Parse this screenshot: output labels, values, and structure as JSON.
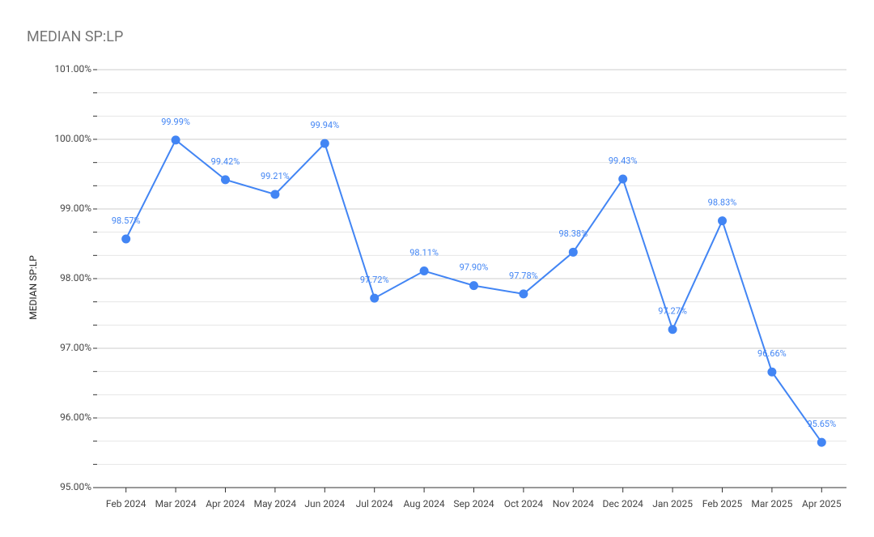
{
  "chart_data": {
    "type": "line",
    "title": "MEDIAN SP:LP",
    "y_label": "MEDIAN SP:LP",
    "categories": [
      "Feb 2024",
      "Mar 2024",
      "Apr 2024",
      "May 2024",
      "Jun 2024",
      "Jul 2024",
      "Aug 2024",
      "Sep 2024",
      "Oct 2024",
      "Nov 2024",
      "Dec 2024",
      "Jan 2025",
      "Feb 2025",
      "Mar 2025",
      "Apr 2025"
    ],
    "series": [
      {
        "name": "MEDIAN SP:LP",
        "color": "#4285f4",
        "values": [
          98.57,
          99.99,
          99.42,
          99.21,
          99.94,
          97.72,
          98.11,
          97.9,
          97.78,
          98.38,
          99.43,
          97.27,
          98.83,
          96.66,
          95.65
        ],
        "value_labels": [
          "98.57%",
          "99.99%",
          "99.42%",
          "99.21%",
          "99.94%",
          "97.72%",
          "98.11%",
          "97.90%",
          "97.78%",
          "98.38%",
          "99.43%",
          "97.27%",
          "98.83%",
          "96.66%",
          "95.65%"
        ]
      }
    ],
    "ylim": [
      95,
      101
    ],
    "yticks": [
      {
        "value": 95,
        "label": "95.00%"
      },
      {
        "value": 96,
        "label": "96.00%"
      },
      {
        "value": 97,
        "label": "97.00%"
      },
      {
        "value": 98,
        "label": "98.00%"
      },
      {
        "value": 99,
        "label": "99.00%"
      },
      {
        "value": 100,
        "label": "100.00%"
      },
      {
        "value": 101,
        "label": "101.00%"
      }
    ],
    "grid": true
  }
}
